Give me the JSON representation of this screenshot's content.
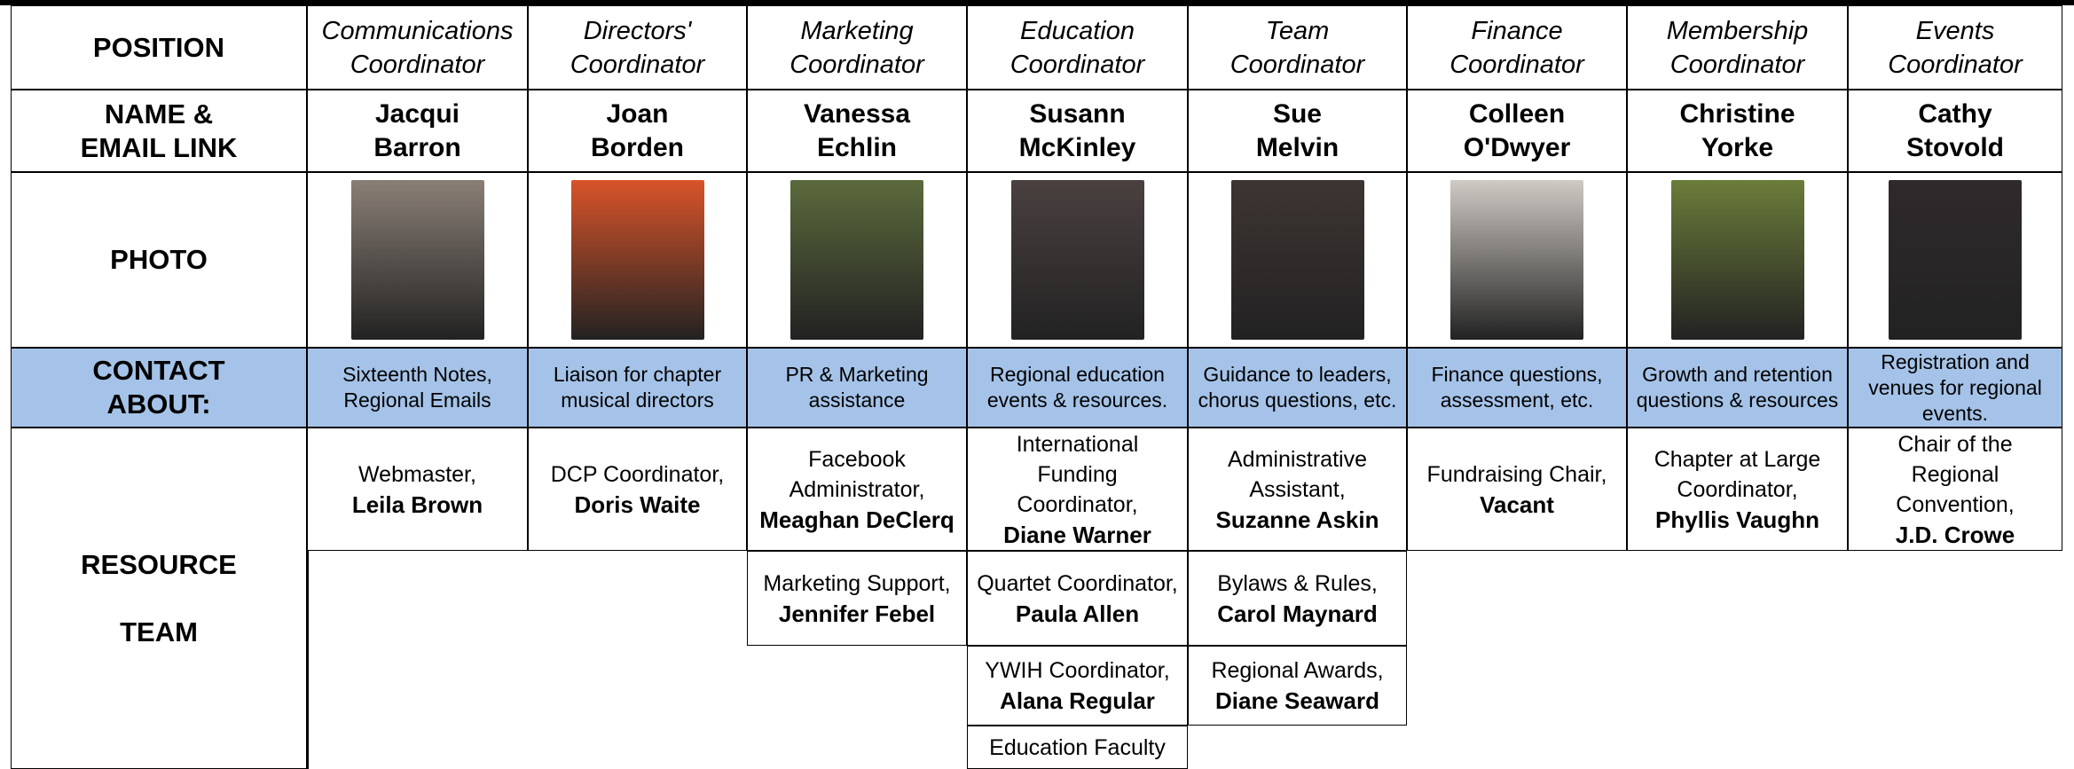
{
  "row_labels": {
    "position": "POSITION",
    "name": [
      "NAME &",
      "EMAIL LINK"
    ],
    "photo": "PHOTO",
    "contact": [
      "CONTACT",
      "ABOUT:"
    ],
    "resource": [
      "RESOURCE",
      "TEAM"
    ]
  },
  "columns": [
    {
      "position": "Communications Coordinator",
      "name": "Jacqui Barron",
      "contact": "Sixteenth Notes, Regional Emails",
      "resources": [
        {
          "role": "Webmaster,",
          "person": "Leila Brown"
        }
      ]
    },
    {
      "position": "Directors' Coordinator",
      "name": "Joan Borden",
      "contact": "Liaison for chapter musical directors",
      "resources": [
        {
          "role": "DCP Coordinator,",
          "person": "Doris Waite"
        }
      ]
    },
    {
      "position": "Marketing Coordinator",
      "name": "Vanessa Echlin",
      "contact": "PR & Marketing assistance",
      "resources": [
        {
          "role": "Facebook Administrator,",
          "person": "Meaghan DeClerq"
        },
        {
          "role": "Marketing Support,",
          "person": "Jennifer Febel"
        }
      ]
    },
    {
      "position": "Education Coordinator",
      "name": "Susann McKinley",
      "contact": "Regional education events & resources.",
      "resources": [
        {
          "role": "International Funding Coordinator,",
          "person": "Diane Warner"
        },
        {
          "role": "Quartet Coordinator,",
          "person": "Paula Allen"
        },
        {
          "role": "YWIH Coordinator,",
          "person": "Alana Regular"
        },
        {
          "role": "Education Faculty"
        }
      ]
    },
    {
      "position": "Team Coordinator",
      "name": "Sue Melvin",
      "contact": "Guidance to leaders, chorus questions, etc.",
      "resources": [
        {
          "role": "Administrative Assistant,",
          "person": "Suzanne Askin"
        },
        {
          "role": "Bylaws & Rules,",
          "person": "Carol Maynard"
        },
        {
          "role": "Regional Awards,",
          "person": "Diane Seaward"
        }
      ]
    },
    {
      "position": "Finance Coordinator",
      "name": "Colleen O'Dwyer",
      "contact": "Finance questions, assessment, etc.",
      "resources": [
        {
          "role": "Fundraising Chair,",
          "person": "Vacant"
        }
      ]
    },
    {
      "position": "Membership Coordinator",
      "name": "Christine Yorke",
      "contact": "Growth and retention questions & resources",
      "resources": [
        {
          "role": "Chapter at Large Coordinator,",
          "person": "Phyllis Vaughn"
        }
      ]
    },
    {
      "position": "Events Coordinator",
      "name": "Cathy Stovold",
      "contact": "Registration and venues for regional events.",
      "resources": [
        {
          "role": "Chair of the Regional Convention,",
          "person": "J.D. Crowe"
        }
      ]
    }
  ]
}
